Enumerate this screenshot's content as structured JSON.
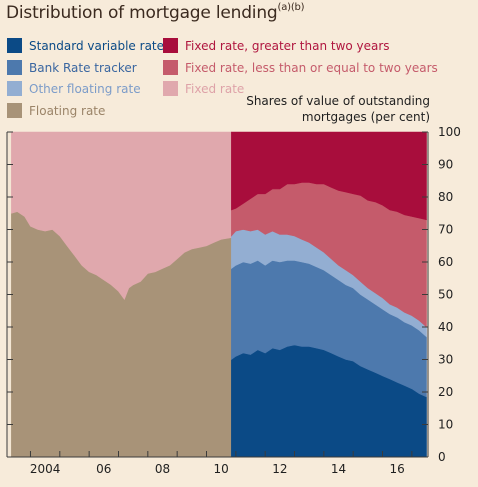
{
  "title": "Distribution of mortgage lending",
  "title_sup": "(a)(b)",
  "unit_label": [
    "Shares of value of outstanding",
    "mortgages (per cent)"
  ],
  "legend": [
    {
      "label": "Standard variable rate",
      "color": "#0b4a86",
      "text_color": "#0b4a86"
    },
    {
      "label": "Bank Rate tracker",
      "color": "#4d79ad",
      "text_color": "#3a66a0"
    },
    {
      "label": "Other floating rate",
      "color": "#93aed2",
      "text_color": "#7c9cc9"
    },
    {
      "label": "Floating rate",
      "color": "#a89378",
      "text_color": "#9b8468"
    },
    {
      "label": "Fixed rate, greater than two years",
      "color": "#a80d3c",
      "text_color": "#b0163f"
    },
    {
      "label": "Fixed rate, less than or equal to two years",
      "color": "#c55b6b",
      "text_color": "#c55b6b"
    },
    {
      "label": "Fixed rate",
      "color": "#e0a8ad",
      "text_color": "#dea2a8"
    }
  ],
  "chart_data": {
    "type": "area",
    "stacked": true,
    "x_tick_labels": [
      "2004",
      "06",
      "08",
      "10",
      "12",
      "14",
      "16"
    ],
    "y_ticks": [
      0,
      10,
      20,
      30,
      40,
      50,
      60,
      70,
      80,
      90,
      100
    ],
    "ylim": [
      0,
      100
    ],
    "xlim": [
      2003.2,
      2017.55
    ],
    "y_axis_position": "right",
    "grid": false,
    "period_1": {
      "x": [
        2003.35,
        2003.55,
        2003.8,
        2004.0,
        2004.25,
        2004.5,
        2004.75,
        2005.0,
        2005.25,
        2005.5,
        2005.75,
        2006.0,
        2006.25,
        2006.5,
        2006.75,
        2007.0,
        2007.2,
        2007.35,
        2007.5,
        2007.75,
        2008.0,
        2008.25,
        2008.5,
        2008.75,
        2009.0,
        2009.25,
        2009.5,
        2009.75,
        2010.0,
        2010.25,
        2010.5,
        2010.85
      ],
      "series": [
        {
          "name": "Floating rate",
          "values": [
            75,
            75.5,
            74,
            71,
            70,
            69.5,
            70,
            68,
            65,
            62,
            59,
            57,
            56,
            54.5,
            53,
            51,
            48.5,
            52,
            53,
            54,
            56.5,
            57,
            58,
            59,
            61,
            63,
            64,
            64.5,
            65,
            66,
            67,
            67.5
          ]
        },
        {
          "name": "Fixed rate",
          "values": [
            25,
            24.5,
            26,
            29,
            30,
            30.5,
            30,
            32,
            35,
            38,
            41,
            43,
            44,
            45.5,
            47,
            49,
            51.5,
            48,
            47,
            46,
            43.5,
            43,
            42,
            41,
            39,
            37,
            36,
            35.5,
            35,
            34,
            33,
            32.5
          ]
        }
      ]
    },
    "period_2": {
      "x": [
        2010.85,
        2011.0,
        2011.25,
        2011.5,
        2011.75,
        2012.0,
        2012.25,
        2012.5,
        2012.75,
        2013.0,
        2013.25,
        2013.5,
        2013.75,
        2014.0,
        2014.25,
        2014.5,
        2014.75,
        2015.0,
        2015.25,
        2015.5,
        2015.75,
        2016.0,
        2016.25,
        2016.5,
        2016.75,
        2017.0,
        2017.25,
        2017.5
      ],
      "series": [
        {
          "name": "Standard variable rate",
          "values": [
            30,
            31,
            32,
            31.5,
            33,
            32,
            33.5,
            33,
            34,
            34.5,
            34,
            34,
            33.5,
            33,
            32,
            31,
            30,
            29.5,
            28,
            27,
            26,
            25,
            24,
            23,
            22,
            21,
            19.5,
            18.5
          ]
        },
        {
          "name": "Bank Rate tracker",
          "values": [
            28,
            28,
            28,
            28,
            27.5,
            27,
            27,
            27,
            26.5,
            26,
            26,
            25.5,
            25,
            24.5,
            24,
            23.5,
            23,
            22.5,
            22,
            21.5,
            21,
            20.5,
            20,
            20,
            19.5,
            19.5,
            19.5,
            18.5
          ]
        },
        {
          "name": "Other floating rate",
          "values": [
            10,
            10.5,
            10,
            10,
            9.5,
            9.5,
            9,
            8.5,
            8,
            7.5,
            7,
            6.5,
            6,
            5.5,
            5,
            4.5,
            4.5,
            4,
            4,
            3.5,
            3.5,
            3.5,
            3,
            3,
            3,
            3,
            3,
            3
          ]
        },
        {
          "name": "Fixed rate, less than or equal to two years",
          "values": [
            8,
            7,
            8,
            10,
            11,
            12.5,
            13,
            14,
            15.5,
            16,
            17.5,
            18.5,
            19.5,
            21,
            22,
            23,
            24,
            25,
            26.5,
            27,
            28,
            28.5,
            29,
            29.5,
            30,
            30.5,
            31.5,
            33
          ]
        },
        {
          "name": "Fixed rate, greater than two years",
          "values": [
            24,
            23.5,
            22,
            20.5,
            19,
            19,
            17.5,
            17.5,
            16,
            16,
            15.5,
            15.5,
            16,
            16,
            17,
            18,
            18.5,
            19,
            19.5,
            21,
            21.5,
            22.5,
            24,
            24.5,
            25.5,
            26,
            26.5,
            27
          ]
        }
      ]
    }
  }
}
